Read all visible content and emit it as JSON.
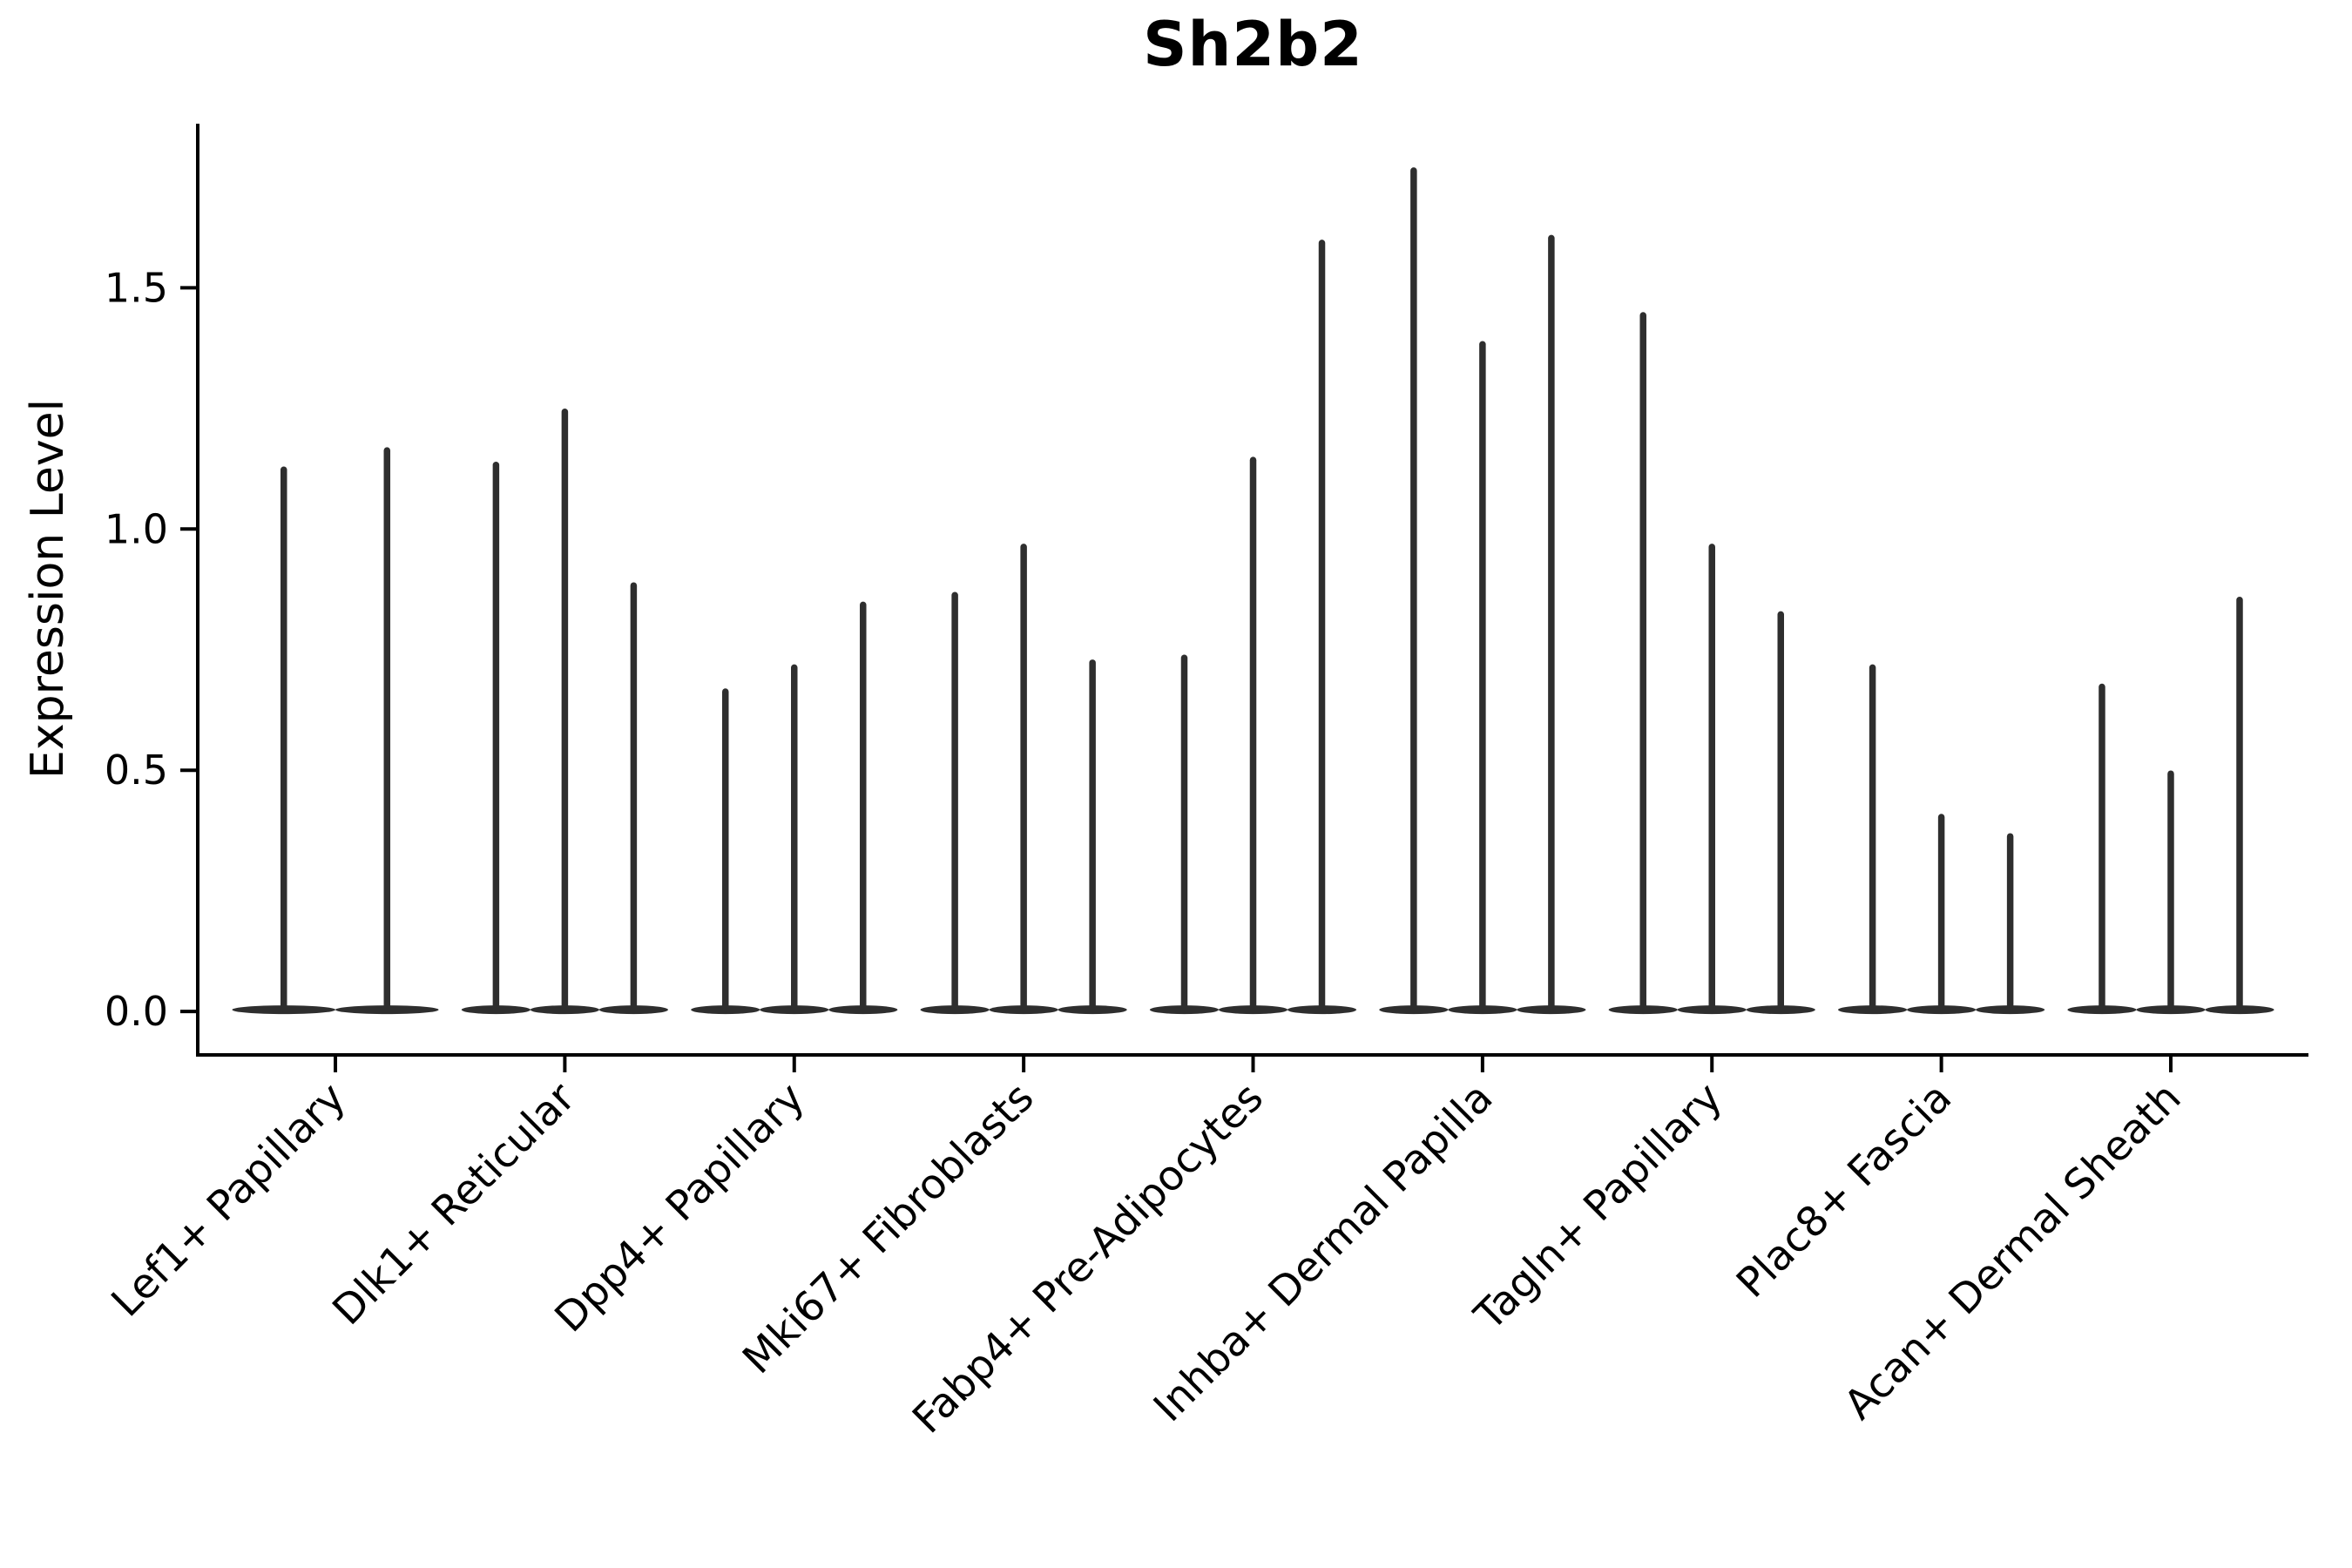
{
  "chart_data": {
    "type": "violin",
    "title": "Sh2b2",
    "ylabel": "Expression Level",
    "xlabel": "",
    "yticks": [
      "0.0",
      "0.5",
      "1.0",
      "1.5"
    ],
    "ytick_values": [
      0.0,
      0.5,
      1.0,
      1.5
    ],
    "ylim": [
      -0.09,
      1.84
    ],
    "grid": false,
    "legend_position": "none",
    "x_label_rotation_deg": 45,
    "categories": [
      "Lef1+ Papillary",
      "Dlk1+ Reticular",
      "Dpp4+ Papillary",
      "Mki67+ Fibroblasts",
      "Fabp4+ Pre-Adipocytes",
      "Inhba+ Dermal Papilla",
      "Tagln+ Papillary",
      "Plac8+ Fascia",
      "Acan+ Dermal Sheath"
    ],
    "series": [
      {
        "category": "Lef1+ Papillary",
        "violin_peaks": [
          1.13,
          1.17
        ]
      },
      {
        "category": "Dlk1+ Reticular",
        "violin_peaks": [
          1.14,
          1.25,
          0.89
        ]
      },
      {
        "category": "Dpp4+ Papillary",
        "violin_peaks": [
          0.67,
          0.72,
          0.85
        ]
      },
      {
        "category": "Mki67+ Fibroblasts",
        "violin_peaks": [
          0.87,
          0.97,
          0.73
        ]
      },
      {
        "category": "Fabp4+ Pre-Adipocytes",
        "violin_peaks": [
          0.74,
          1.15,
          1.6
        ]
      },
      {
        "category": "Inhba+ Dermal Papilla",
        "violin_peaks": [
          1.75,
          1.39,
          1.61
        ]
      },
      {
        "category": "Tagln+ Papillary",
        "violin_peaks": [
          1.45,
          0.97,
          0.83
        ]
      },
      {
        "category": "Plac8+ Fascia",
        "violin_peaks": [
          0.72,
          0.41,
          0.37
        ]
      },
      {
        "category": "Acan+ Dermal Sheath",
        "violin_peaks": [
          0.68,
          0.5,
          0.86
        ]
      }
    ],
    "violin_shape_note": "Each violin is a needle: bulk of distribution at 0 (wide flat base), thin spike up to the peak value listed",
    "colors": {
      "violin": "#2e2e2e",
      "axis": "#000000",
      "text": "#000000",
      "background": "#ffffff"
    }
  }
}
